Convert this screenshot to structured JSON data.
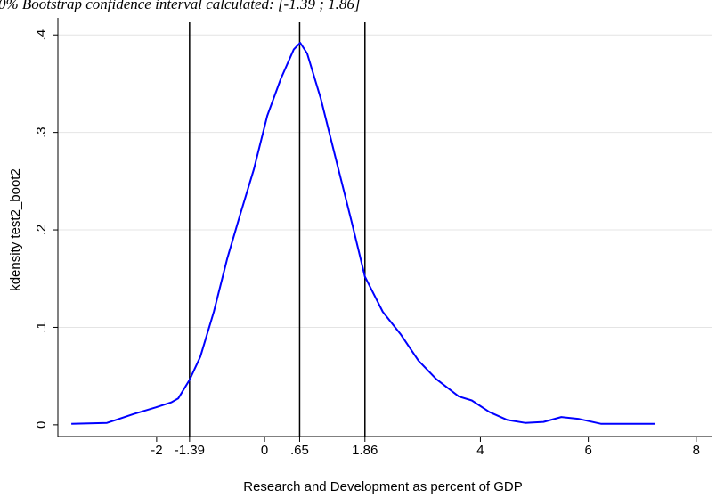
{
  "chart_data": {
    "type": "line",
    "title": "0% Bootstrap confidence interval calculated: [-1.39 ; 1.86]",
    "x_label": "Research and Development as percent of GDP",
    "y_label": "kdensity test2_boot2",
    "xlim": [
      -3.83,
      8.3
    ],
    "ylim": [
      -0.012,
      0.413
    ],
    "xticks": [
      -2,
      -1.39,
      0,
      {
        "value": 0.65,
        "label": ".65"
      },
      1.86,
      4,
      6,
      8
    ],
    "yticks": [
      0,
      {
        "value": 0.1,
        "label": ".1"
      },
      {
        "value": 0.2,
        "label": ".2"
      },
      {
        "value": 0.3,
        "label": ".3"
      },
      {
        "value": 0.4,
        "label": ".4"
      }
    ],
    "grid": true,
    "reference_lines": [
      -1.39,
      0.65,
      1.86
    ],
    "series": [
      {
        "color": "#0000ff",
        "x": [
          -3.58,
          -2.92,
          -2.43,
          -2.01,
          -1.73,
          -1.6,
          -1.39,
          -1.19,
          -0.94,
          -0.69,
          -0.45,
          -0.2,
          0.05,
          0.3,
          0.54,
          0.66,
          0.79,
          1.04,
          1.37,
          1.62,
          1.86,
          2.19,
          2.52,
          2.85,
          3.18,
          3.6,
          3.84,
          4.17,
          4.5,
          4.83,
          5.17,
          5.5,
          5.83,
          6.24,
          7.23
        ],
        "values": [
          0.001,
          0.002,
          0.011,
          0.018,
          0.023,
          0.027,
          0.046,
          0.07,
          0.116,
          0.171,
          0.216,
          0.262,
          0.317,
          0.355,
          0.385,
          0.392,
          0.381,
          0.335,
          0.262,
          0.207,
          0.152,
          0.116,
          0.093,
          0.066,
          0.047,
          0.029,
          0.025,
          0.013,
          0.005,
          0.002,
          0.003,
          0.008,
          0.006,
          0.001,
          0.001
        ]
      }
    ]
  }
}
